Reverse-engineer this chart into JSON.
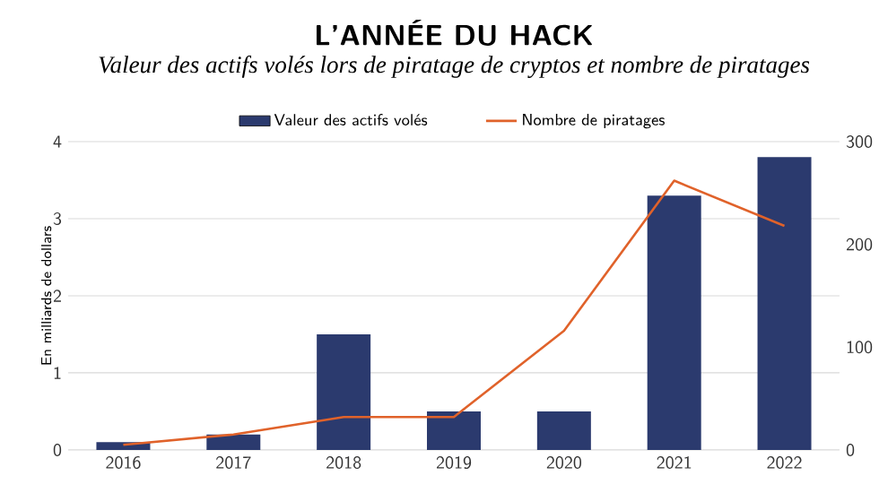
{
  "chart_data": {
    "type": "bar",
    "title": "L’ANNÉE DU HACK",
    "subtitle": "Valeur des actifs volés lors de piratage de cryptos et nombre de piratages",
    "ylabel": "En milliards de dollars",
    "categories": [
      "2016",
      "2017",
      "2018",
      "2019",
      "2020",
      "2021",
      "2022"
    ],
    "series": [
      {
        "name": "Valeur des actifs volés",
        "color": "#2b3a6e",
        "values": [
          0.1,
          0.2,
          1.5,
          0.5,
          0.5,
          3.3,
          3.8
        ]
      },
      {
        "name": "Nombre de piratages",
        "type": "line",
        "axis": "y2",
        "color": "#e0622a",
        "values": [
          5,
          15,
          32,
          32,
          116,
          262,
          218
        ]
      }
    ],
    "ylim": [
      0,
      4
    ],
    "yticks": [
      0,
      1,
      2,
      3,
      4
    ],
    "y2lim": [
      0,
      300
    ],
    "y2ticks": [
      0,
      100,
      200,
      300
    ],
    "grid": "y",
    "legend": "top",
    "marker": "none",
    "line_style": "solid"
  }
}
